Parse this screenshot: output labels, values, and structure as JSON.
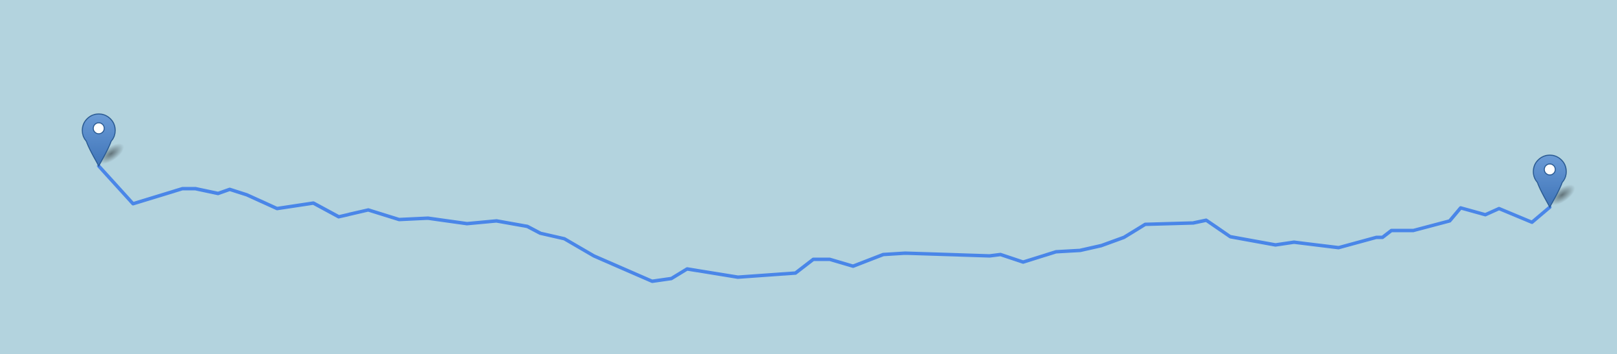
{
  "map": {
    "background_color": "#b3d3de",
    "route_color": "#4a86e8",
    "marker_fill": "#4a80c4",
    "marker_stroke": "#2b5b93",
    "markers": [
      {
        "name": "start-marker",
        "icon": "map-pin-icon"
      },
      {
        "name": "end-marker",
        "icon": "map-pin-icon"
      }
    ]
  }
}
